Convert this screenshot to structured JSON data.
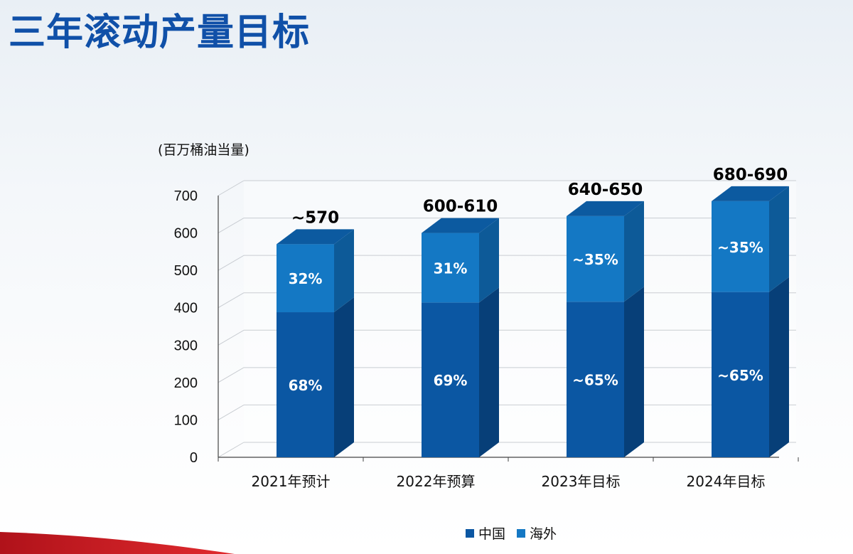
{
  "title": "三年滚动产量目标",
  "colors": {
    "title": "#1050a8",
    "china_front": "#0b57a3",
    "china_side": "#073f78",
    "china_top": "#0a4e93",
    "overseas_front": "#1478c4",
    "overseas_side": "#0d5a98",
    "overseas_top": "#0c5aa0",
    "grid": "#c9cdd2",
    "swoosh": "#c8161e"
  },
  "chart_data": {
    "type": "bar",
    "stacked": true,
    "unit_label": "(百万桶油当量)",
    "categories": [
      "2021年预计",
      "2022年预算",
      "2023年目标",
      "2024年目标"
    ],
    "series": [
      {
        "name": "中国",
        "values": [
          388,
          414,
          416,
          442
        ],
        "labels": [
          "68%",
          "69%",
          "~65%",
          "~65%"
        ]
      },
      {
        "name": "海外",
        "values": [
          182,
          186,
          229,
          243
        ],
        "labels": [
          "32%",
          "31%",
          "~35%",
          "~35%"
        ]
      }
    ],
    "totals": [
      "~570",
      "600-610",
      "640-650",
      "680-690"
    ],
    "total_values": [
      570,
      600,
      645,
      685
    ],
    "ylim": [
      0,
      700
    ],
    "yticks": [
      0,
      100,
      200,
      300,
      400,
      500,
      600,
      700
    ],
    "grid": true,
    "legend": [
      "中国",
      "海外"
    ]
  }
}
